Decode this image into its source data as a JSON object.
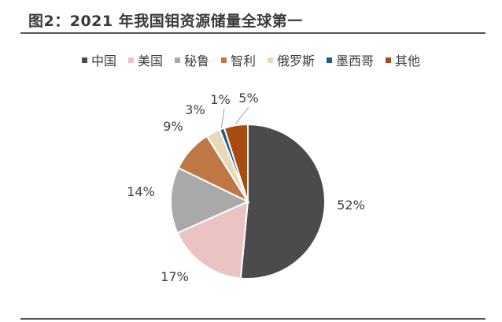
{
  "figure": {
    "title": "图2：2021 年我国钼资源储量全球第一"
  },
  "chart_data": {
    "type": "pie",
    "title": "",
    "legend_position": "top",
    "categories": [
      "中国",
      "美国",
      "秘鲁",
      "智利",
      "俄罗斯",
      "墨西哥",
      "其他"
    ],
    "values": [
      52,
      17,
      14,
      9,
      3,
      1,
      5
    ],
    "labels": [
      "52%",
      "17%",
      "14%",
      "9%",
      "3%",
      "1%",
      "5%"
    ],
    "colors": [
      "#4b4b4d",
      "#ecc3c3",
      "#a9a9a9",
      "#be7745",
      "#ead9b8",
      "#1f5b8e",
      "#a94c13"
    ]
  }
}
